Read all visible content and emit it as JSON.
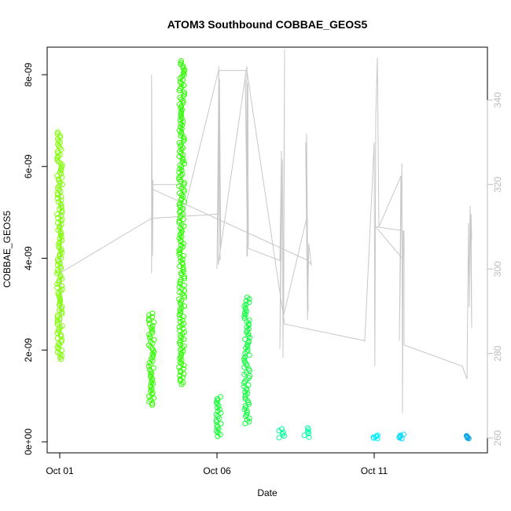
{
  "chart_data": {
    "type": "scatter",
    "title": "ATOM3 Southbound COBBAE_GEOS5",
    "xlabel": "Date",
    "ylabel": "COBBAE_GEOS5",
    "x_ticks": [
      {
        "day": 1,
        "label": "Oct 01"
      },
      {
        "day": 6,
        "label": "Oct 06"
      },
      {
        "day": 11,
        "label": "Oct 11"
      }
    ],
    "xlim": [
      0.6,
      14.6
    ],
    "ylim": [
      -2.4e-10,
      8.6e-09
    ],
    "y_ticks": [
      {
        "value": 0,
        "label": "0e+00"
      },
      {
        "value": 2e-09,
        "label": "2e-09"
      },
      {
        "value": 4e-09,
        "label": "4e-09"
      },
      {
        "value": 6e-09,
        "label": "6e-09"
      },
      {
        "value": 8e-09,
        "label": "8e-09"
      }
    ],
    "y2lim": [
      256.5,
      352.5
    ],
    "y2_ticks": [
      {
        "value": 260,
        "label": "260"
      },
      {
        "value": 280,
        "label": "280"
      },
      {
        "value": 300,
        "label": "300"
      },
      {
        "value": 320,
        "label": "320"
      },
      {
        "value": 340,
        "label": "340"
      }
    ],
    "series": [
      {
        "marker": "open-circle",
        "points_note_free": true,
        "clusters": [
          {
            "x": 1.0,
            "ymin": 1.8e-09,
            "ymax": 6.75e-09,
            "color": "#80ff00"
          },
          {
            "x": 3.92,
            "ymin": 8e-10,
            "ymax": 2.8e-09,
            "color": "#33ff00"
          },
          {
            "x": 4.88,
            "ymin": 1.25e-09,
            "ymax": 8.3e-09,
            "color": "#2dff00"
          },
          {
            "x": 6.05,
            "ymin": 1.2e-10,
            "ymax": 9.8e-10,
            "color": "#12ff33"
          },
          {
            "x": 6.95,
            "ymin": 4e-10,
            "ymax": 3.15e-09,
            "color": "#12ff40"
          },
          {
            "x": 8.05,
            "ymin": 9e-11,
            "ymax": 2.8e-10,
            "color": "#00ff99"
          },
          {
            "x": 8.85,
            "ymin": 1e-10,
            "ymax": 3e-10,
            "color": "#00ffa6"
          },
          {
            "x": 11.05,
            "ymin": 7e-11,
            "ymax": 1.4e-10,
            "color": "#00eeff"
          },
          {
            "x": 11.85,
            "ymin": 7e-11,
            "ymax": 1.6e-10,
            "color": "#00ddff"
          },
          {
            "x": 14.0,
            "ymin": 7e-11,
            "ymax": 1.3e-10,
            "color": "#0fa8e6"
          }
        ]
      },
      {
        "axis": "right",
        "marker": "line",
        "color": "#c8c8c8",
        "path": [
          [
            1.0,
            278
          ],
          [
            1.0,
            300
          ],
          [
            1.03,
            322
          ],
          [
            1.06,
            286
          ],
          [
            1.0,
            299
          ],
          [
            3.92,
            312
          ],
          [
            6.05,
            313
          ],
          [
            6.05,
            340
          ],
          [
            6.1,
            302
          ],
          [
            6.08,
            345
          ],
          [
            6.12,
            305
          ],
          [
            6.06,
            344
          ],
          [
            6.0,
            300
          ],
          [
            6.06,
            348
          ],
          [
            6.04,
            301
          ],
          [
            6.95,
            348
          ],
          [
            6.97,
            303
          ],
          [
            6.9,
            346
          ],
          [
            7.0,
            305
          ],
          [
            6.98,
            344
          ],
          [
            6.95,
            303
          ],
          [
            6.95,
            305
          ],
          [
            8.0,
            302
          ],
          [
            8.05,
            328
          ],
          [
            8.0,
            281
          ],
          [
            8.08,
            326
          ],
          [
            8.1,
            279
          ],
          [
            8.15,
            352
          ],
          [
            8.12,
            289
          ],
          [
            8.85,
            312
          ],
          [
            8.85,
            332
          ],
          [
            8.9,
            290
          ],
          [
            8.82,
            330
          ],
          [
            8.88,
            288
          ],
          [
            8.92,
            306
          ],
          [
            9.0,
            301
          ],
          [
            8.9,
            302
          ],
          [
            3.92,
            319
          ],
          [
            3.92,
            299
          ],
          [
            3.92,
            346
          ],
          [
            3.95,
            303
          ],
          [
            3.97,
            321
          ],
          [
            3.92,
            320
          ],
          [
            4.88,
            320
          ],
          [
            4.88,
            324
          ],
          [
            4.9,
            346
          ],
          [
            4.92,
            332
          ],
          [
            4.9,
            347
          ],
          [
            4.93,
            313
          ],
          [
            6.05,
            347
          ],
          [
            6.95,
            347
          ],
          [
            8.15,
            287
          ],
          [
            10.72,
            283
          ],
          [
            10.7,
            283
          ],
          [
            11.0,
            330
          ],
          [
            11.02,
            277
          ],
          [
            11.05,
            336
          ],
          [
            11.1,
            350
          ],
          [
            11.15,
            310
          ],
          [
            11.85,
            322
          ],
          [
            11.8,
            283
          ],
          [
            11.88,
            325
          ],
          [
            11.9,
            266
          ],
          [
            11.92,
            309
          ],
          [
            11.95,
            302
          ],
          [
            11.05,
            310
          ],
          [
            11.95,
            309
          ],
          [
            11.95,
            282
          ],
          [
            13.8,
            277
          ],
          [
            13.95,
            274
          ],
          [
            14.0,
            311
          ],
          [
            14.02,
            291
          ],
          [
            14.05,
            315
          ],
          [
            14.1,
            286
          ],
          [
            14.08,
            313
          ],
          [
            14.1,
            307
          ]
        ]
      }
    ],
    "grid": false,
    "legend": "none"
  }
}
